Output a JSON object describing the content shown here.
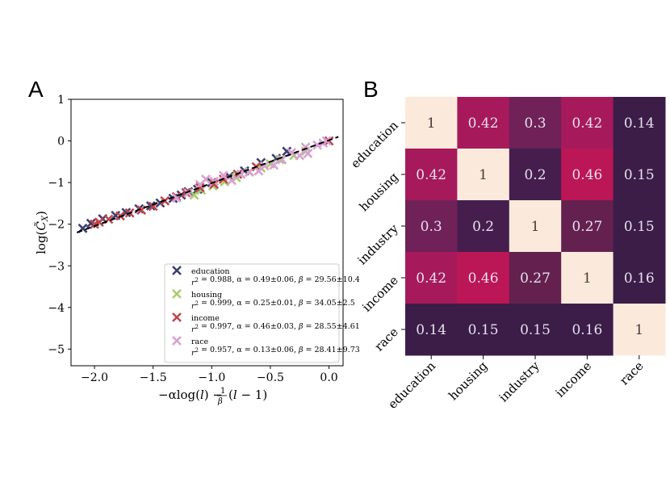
{
  "panel_labels": {
    "a": "A",
    "b": "B"
  },
  "chart_data": [
    {
      "type": "scatter",
      "title": "",
      "xlabel": "−αlog(l) − (1/β)(l − 1)",
      "xlabel_parts": {
        "main": "−αlog(",
        "l1": "l",
        "mid": ") −",
        "num": "1",
        "den": "β",
        "open": "(",
        "l2": "l",
        "tail": " − 1)"
      },
      "ylabel": "log(C̃_X)",
      "ylabel_parts": {
        "main": "log(",
        "c": "C̃",
        "sub": "X",
        "close": ")"
      },
      "xlim": [
        -2.2,
        0.12
      ],
      "ylim": [
        -5.4,
        1.0
      ],
      "xticks": [
        -2.0,
        -1.5,
        -1.0,
        -0.5,
        0.0
      ],
      "xtick_labels": [
        "−2.0",
        "−1.5",
        "−1.0",
        "−0.5",
        "0.0"
      ],
      "yticks": [
        1,
        0,
        -1,
        -2,
        -3,
        -4,
        -5
      ],
      "ytick_labels": [
        "1",
        "0",
        "−1",
        "−2",
        "−3",
        "−4",
        "−5"
      ],
      "fit_line": {
        "x": [
          -2.15,
          0.08
        ],
        "y": [
          -2.2,
          0.1
        ],
        "style": "dashed",
        "color": "#000000"
      },
      "series": [
        {
          "name": "education",
          "color": "#3a3f73",
          "stats": {
            "r2": "0.988",
            "alpha": "0.49±0.06",
            "beta": "29.56±10.4"
          },
          "x": [
            -2.1,
            -2.03,
            -1.93,
            -1.82,
            -1.73,
            -1.62,
            -1.52,
            -1.44,
            -1.33,
            -1.26,
            -1.2,
            -1.12,
            -1.0,
            -0.85,
            -0.72,
            -0.58,
            -0.45,
            -0.36
          ],
          "y": [
            -2.1,
            -1.98,
            -1.87,
            -1.79,
            -1.72,
            -1.63,
            -1.56,
            -1.49,
            -1.38,
            -1.3,
            -1.22,
            -1.16,
            -1.0,
            -0.85,
            -0.72,
            -0.52,
            -0.42,
            -0.25
          ]
        },
        {
          "name": "housing",
          "color": "#a7cc6a",
          "stats": {
            "r2": "0.999",
            "alpha": "0.25±0.01",
            "beta": "34.05±2.5"
          },
          "x": [
            -1.15,
            -1.09,
            -0.99,
            -0.89,
            -0.79,
            -0.68,
            -0.58,
            -0.5,
            -0.42,
            -0.3,
            -0.2
          ],
          "y": [
            -1.3,
            -1.18,
            -1.08,
            -0.98,
            -0.88,
            -0.74,
            -0.65,
            -0.55,
            -0.45,
            -0.35,
            -0.25
          ]
        },
        {
          "name": "income",
          "color": "#c2454a",
          "stats": {
            "r2": "0.997",
            "alpha": "0.46±0.03",
            "beta": "28.55±4.61"
          },
          "x": [
            -2.0,
            -1.96,
            -1.88,
            -1.78,
            -1.7,
            -1.6,
            -1.5,
            -1.4,
            -1.3,
            -1.22,
            -1.1,
            -0.98,
            -0.9,
            -0.78,
            -0.62,
            0.0
          ],
          "y": [
            -2.0,
            -1.95,
            -1.88,
            -1.8,
            -1.73,
            -1.66,
            -1.57,
            -1.44,
            -1.34,
            -1.24,
            -1.12,
            -1.04,
            -0.92,
            -0.8,
            -0.62,
            0.0
          ]
        },
        {
          "name": "race",
          "color": "#d9a0d2",
          "stats": {
            "r2": "0.957",
            "alpha": "0.13±0.06",
            "beta": "28.41±9.73"
          },
          "x": [
            -1.3,
            -1.2,
            -1.1,
            -1.05,
            -0.98,
            -0.9,
            -0.83,
            -0.75,
            -0.68,
            -0.6,
            -0.55,
            -0.47,
            -0.4,
            -0.32,
            -0.25,
            -0.2,
            -0.18,
            -0.1,
            -0.05,
            -0.02
          ],
          "y": [
            -1.37,
            -1.25,
            -1.05,
            -0.92,
            -0.97,
            -0.83,
            -0.95,
            -0.8,
            -0.75,
            -0.72,
            -0.6,
            -0.58,
            -0.45,
            -0.28,
            -0.35,
            -0.15,
            -0.3,
            -0.1,
            -0.05,
            0.0
          ]
        }
      ]
    },
    {
      "type": "heatmap",
      "title": "",
      "categories": [
        "education",
        "housing",
        "industry",
        "income",
        "race"
      ],
      "values": [
        [
          1,
          0.42,
          0.3,
          0.42,
          0.14
        ],
        [
          0.42,
          1,
          0.2,
          0.46,
          0.15
        ],
        [
          0.3,
          0.2,
          1,
          0.27,
          0.15
        ],
        [
          0.42,
          0.46,
          0.27,
          1,
          0.16
        ],
        [
          0.14,
          0.15,
          0.15,
          0.16,
          1
        ]
      ],
      "value_labels": [
        [
          "1",
          "0.42",
          "0.3",
          "0.42",
          "0.14"
        ],
        [
          "0.42",
          "1",
          "0.2",
          "0.46",
          "0.15"
        ],
        [
          "0.3",
          "0.2",
          "1",
          "0.27",
          "0.15"
        ],
        [
          "0.42",
          "0.46",
          "0.27",
          "1",
          "0.16"
        ],
        [
          "0.14",
          "0.15",
          "0.15",
          "0.16",
          "1"
        ]
      ],
      "colormap": "rocket",
      "colors": {
        "diagonal": "#fbeadc",
        "dark": "#3a1b46",
        "low_text": "#e8e0ef",
        "high_text": "#4a3a3a"
      }
    }
  ]
}
